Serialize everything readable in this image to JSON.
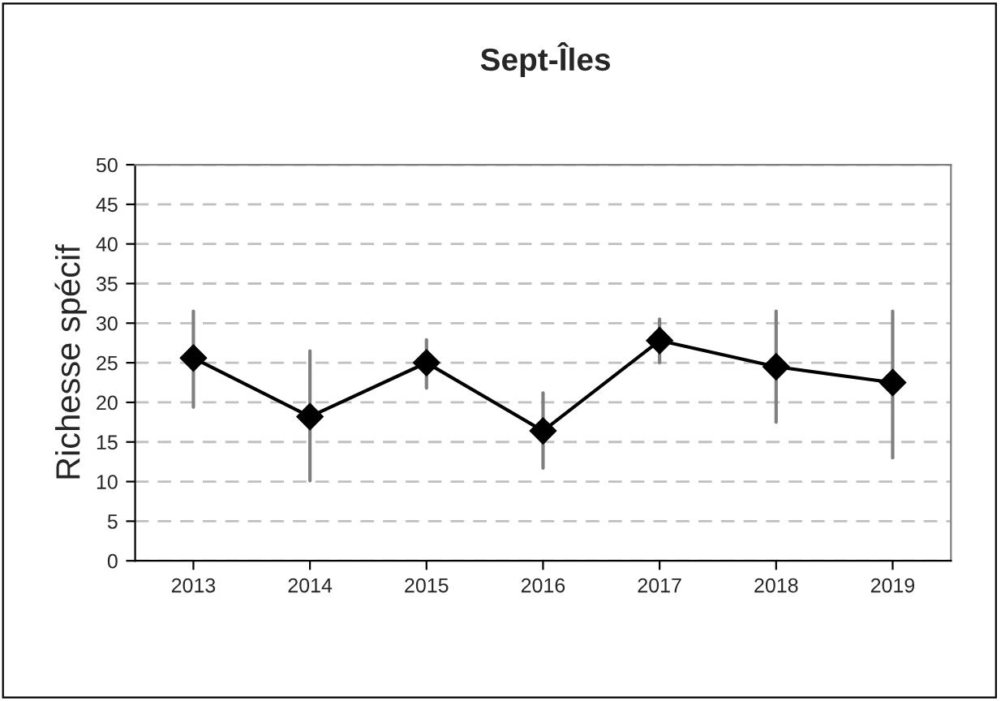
{
  "chart_data": {
    "type": "line",
    "title": "Sept-Îles",
    "ylabel": "Richesse spécif",
    "categories": [
      "2013",
      "2014",
      "2015",
      "2016",
      "2017",
      "2018",
      "2019"
    ],
    "series": [
      {
        "color": "#000000",
        "values": [
          25.6,
          18.2,
          25.0,
          16.4,
          27.8,
          24.5,
          22.5
        ],
        "errors": [
          [
            19.4,
            31.5
          ],
          [
            10.1,
            26.5
          ],
          [
            21.8,
            27.9
          ],
          [
            11.7,
            21.2
          ],
          [
            25.0,
            30.5
          ],
          [
            17.5,
            31.5
          ],
          [
            13.0,
            31.5
          ]
        ]
      }
    ],
    "ylim": [
      0,
      50
    ],
    "yticks": [
      0,
      5,
      10,
      15,
      20,
      25,
      30,
      35,
      40,
      45,
      50
    ],
    "grid": "y",
    "marker": "diamond",
    "line_style": "solid",
    "legend": false
  }
}
